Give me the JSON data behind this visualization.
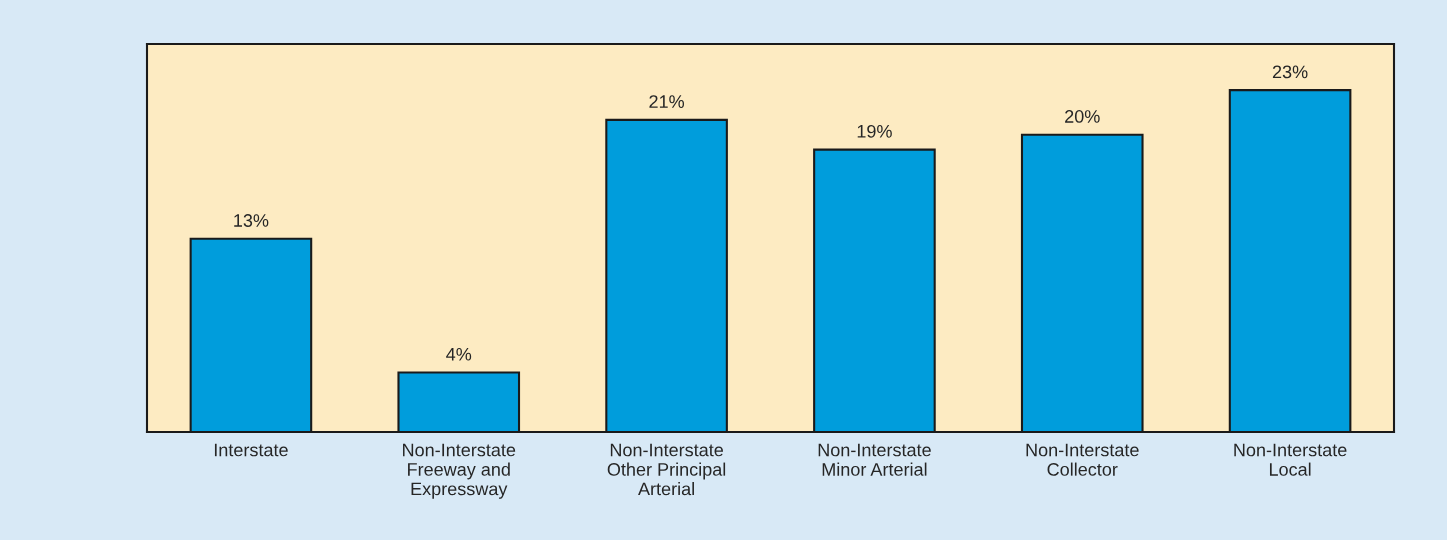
{
  "chart_data": {
    "type": "bar",
    "categories": [
      "Interstate",
      "Non-Interstate\nFreeway and\nExpressway",
      "Non-Interstate\nOther Principal\nArterial",
      "Non-Interstate\nMinor Arterial",
      "Non-Interstate\nCollector",
      "Non-Interstate\nLocal"
    ],
    "values": [
      13,
      4,
      21,
      19,
      20,
      23
    ],
    "value_labels": [
      "13%",
      "4%",
      "21%",
      "19%",
      "20%",
      "23%"
    ],
    "color": "#009ddc",
    "tick_labels": "x",
    "grid": false,
    "legend": false
  }
}
